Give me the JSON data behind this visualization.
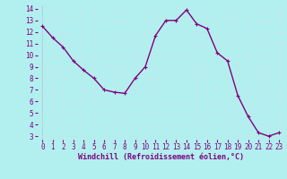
{
  "x": [
    0,
    1,
    2,
    3,
    4,
    5,
    6,
    7,
    8,
    9,
    10,
    11,
    12,
    13,
    14,
    15,
    16,
    17,
    18,
    19,
    20,
    21,
    22,
    23
  ],
  "y": [
    12.5,
    11.5,
    10.7,
    9.5,
    8.7,
    8.0,
    7.0,
    6.8,
    6.7,
    8.0,
    9.0,
    11.7,
    13.0,
    13.0,
    13.9,
    12.7,
    12.3,
    10.2,
    9.5,
    6.5,
    4.7,
    3.3,
    3.0,
    3.3
  ],
  "line_color": "#800080",
  "marker": "+",
  "marker_color": "#800080",
  "bg_color": "#b2f0f0",
  "grid_color": "#c0e8e8",
  "xlabel": "Windchill (Refroidissement éolien,°C)",
  "xlabel_color": "#800080",
  "tick_color": "#800080",
  "ylim": [
    3,
    14
  ],
  "xlim": [
    -0.5,
    23.5
  ],
  "yticks": [
    3,
    4,
    5,
    6,
    7,
    8,
    9,
    10,
    11,
    12,
    13,
    14
  ],
  "xticks": [
    0,
    1,
    2,
    3,
    4,
    5,
    6,
    7,
    8,
    9,
    10,
    11,
    12,
    13,
    14,
    15,
    16,
    17,
    18,
    19,
    20,
    21,
    22,
    23
  ],
  "linewidth": 1.0,
  "markersize": 3,
  "tick_fontsize": 5.5,
  "xlabel_fontsize": 6.0
}
